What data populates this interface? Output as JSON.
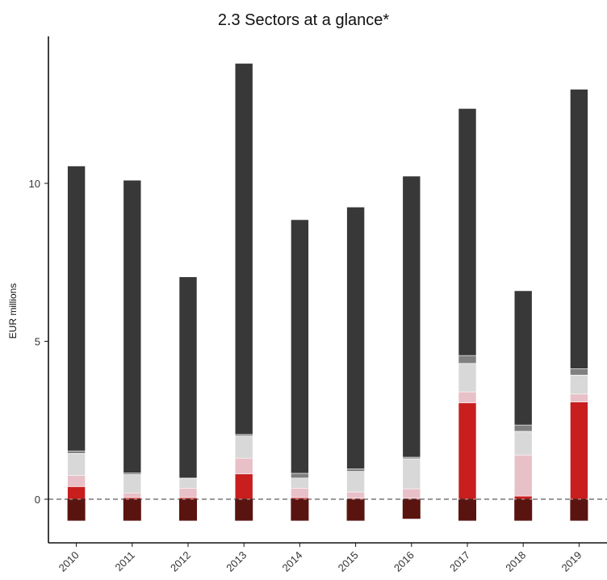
{
  "chart_data": {
    "type": "bar",
    "stacked": true,
    "title": "2.3 Sectors at a glance*",
    "xlabel": "",
    "ylabel": "EUR millions",
    "ylim": [
      -1.1,
      14.5
    ],
    "yticks": [
      0,
      5,
      10
    ],
    "zero_line": "dashed",
    "grid": false,
    "categories": [
      "2010",
      "2011",
      "2012",
      "2013",
      "2014",
      "2015",
      "2016",
      "2017",
      "2018",
      "2019"
    ],
    "series": [
      {
        "color": "#5a1410",
        "values": [
          -0.68,
          -0.68,
          -0.68,
          -0.68,
          -0.68,
          -0.68,
          -0.62,
          -0.68,
          -0.68,
          -0.68
        ]
      },
      {
        "color": "#c81e1e",
        "values": [
          0.4,
          0.05,
          0.05,
          0.8,
          0.05,
          0.03,
          0.03,
          3.05,
          0.1,
          3.08
        ]
      },
      {
        "color": "#e8c0c8",
        "values": [
          0.35,
          0.15,
          0.3,
          0.5,
          0.3,
          0.2,
          0.3,
          0.35,
          1.3,
          0.25
        ]
      },
      {
        "color": "#d8d8d8",
        "values": [
          0.7,
          0.58,
          0.3,
          0.7,
          0.32,
          0.65,
          0.95,
          0.9,
          0.75,
          0.6
        ]
      },
      {
        "color": "#808080",
        "values": [
          0.08,
          0.05,
          0.02,
          0.05,
          0.15,
          0.08,
          0.05,
          0.25,
          0.2,
          0.2
        ]
      },
      {
        "color": "#383838",
        "values": [
          9.02,
          9.27,
          6.37,
          11.75,
          8.03,
          8.29,
          8.9,
          7.82,
          4.25,
          8.85
        ]
      }
    ]
  }
}
